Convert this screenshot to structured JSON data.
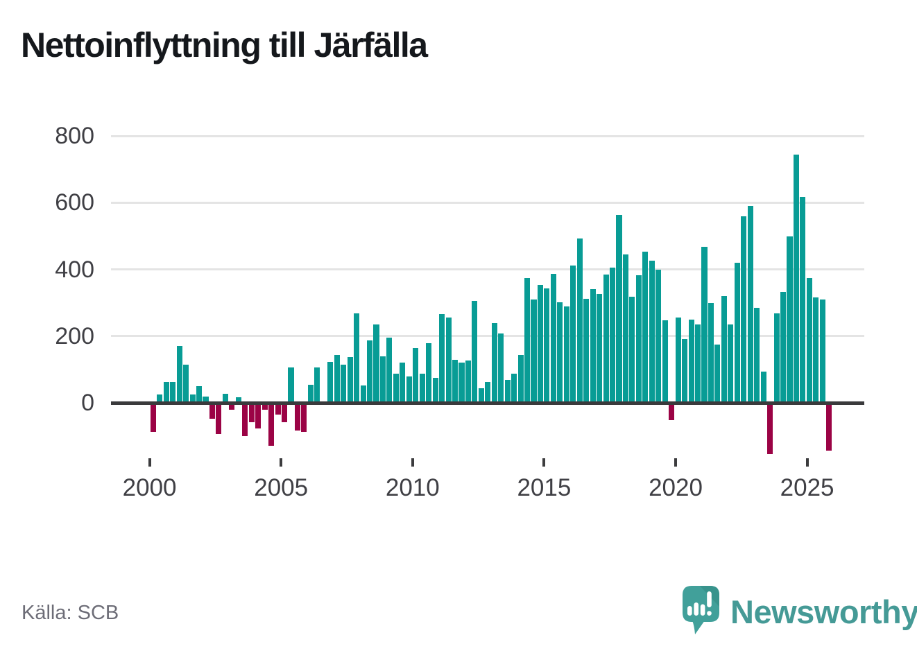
{
  "title": "Nettoinflyttning till Järfälla",
  "source": "Källa: SCB",
  "branding": {
    "name": "Newsworthy",
    "logo_icon": "speech-bubble-bar-chart-icon"
  },
  "colors": {
    "positive_bar": "#089c95",
    "negative_bar": "#9b0345",
    "gridline": "#e4e4e4",
    "zero_axis": "#3a3a3c",
    "axis_text": "#3f3f44",
    "title_text": "#15181c",
    "source_text": "#6d6d77",
    "brand_teal": "#459a96"
  },
  "chart_data": {
    "type": "bar",
    "title": "Nettoinflyttning till Järfälla",
    "xlabel": "",
    "ylabel": "",
    "frequency": "quarterly",
    "x_start": "2000-Q1",
    "x_end": "2025-Q4",
    "y_ticks": [
      0,
      200,
      400,
      600,
      800
    ],
    "y_tick_labels": [
      "0",
      "200",
      "400",
      "600",
      "800"
    ],
    "x_tick_labels": [
      "2000",
      "2005",
      "2010",
      "2015",
      "2020",
      "2025"
    ],
    "ylim": [
      -200,
      860
    ],
    "grid": true,
    "legend": false,
    "series": [
      {
        "year": 2000,
        "values": [
          -88,
          25,
          62,
          62
        ]
      },
      {
        "year": 2001,
        "values": [
          170,
          115,
          24,
          49
        ]
      },
      {
        "year": 2002,
        "values": [
          18,
          -47,
          -94,
          26
        ]
      },
      {
        "year": 2003,
        "values": [
          -21,
          16,
          -100,
          -58
        ]
      },
      {
        "year": 2004,
        "values": [
          -77,
          -21,
          -128,
          -35
        ]
      },
      {
        "year": 2005,
        "values": [
          -58,
          105,
          -83,
          -87
        ]
      },
      {
        "year": 2006,
        "values": [
          55,
          107,
          0,
          122
        ]
      },
      {
        "year": 2007,
        "values": [
          143,
          115,
          138,
          268
        ]
      },
      {
        "year": 2008,
        "values": [
          52,
          188,
          235,
          139
        ]
      },
      {
        "year": 2009,
        "values": [
          196,
          87,
          121,
          79
        ]
      },
      {
        "year": 2010,
        "values": [
          165,
          88,
          178,
          75
        ]
      },
      {
        "year": 2011,
        "values": [
          266,
          255,
          129,
          121
        ]
      },
      {
        "year": 2012,
        "values": [
          127,
          306,
          43,
          62
        ]
      },
      {
        "year": 2013,
        "values": [
          238,
          208,
          68,
          87
        ]
      },
      {
        "year": 2014,
        "values": [
          144,
          374,
          310,
          354
        ]
      },
      {
        "year": 2015,
        "values": [
          342,
          386,
          301,
          289
        ]
      },
      {
        "year": 2016,
        "values": [
          412,
          492,
          311,
          341
        ]
      },
      {
        "year": 2017,
        "values": [
          326,
          385,
          405,
          563
        ]
      },
      {
        "year": 2018,
        "values": [
          444,
          317,
          382,
          452
        ]
      },
      {
        "year": 2019,
        "values": [
          426,
          399,
          248,
          -51
        ]
      },
      {
        "year": 2020,
        "values": [
          255,
          192,
          250,
          234
        ]
      },
      {
        "year": 2021,
        "values": [
          468,
          300,
          174,
          319
        ]
      },
      {
        "year": 2022,
        "values": [
          234,
          420,
          558,
          590
        ]
      },
      {
        "year": 2023,
        "values": [
          285,
          94,
          -154,
          269
        ]
      },
      {
        "year": 2024,
        "values": [
          333,
          499,
          744,
          618
        ]
      },
      {
        "year": 2025,
        "values": [
          375,
          315,
          310,
          -144
        ]
      }
    ]
  }
}
